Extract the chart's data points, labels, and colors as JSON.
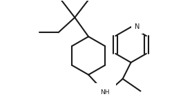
{
  "bg_color": "#ffffff",
  "line_color": "#1a1a1a",
  "line_width": 1.5,
  "fig_width": 2.78,
  "fig_height": 1.63,
  "dpi": 100
}
